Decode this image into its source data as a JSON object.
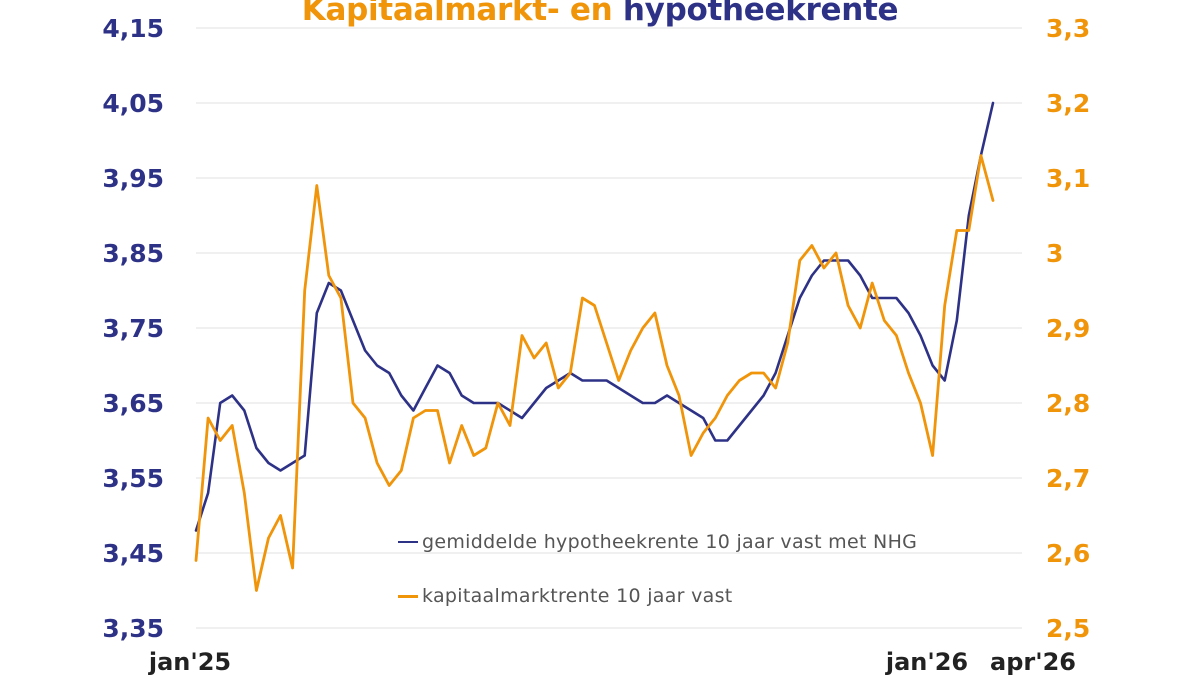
{
  "chart_data": {
    "type": "line",
    "title": {
      "part1": "Kapitaalmarkt- en",
      "part2": "hypotheekrente",
      "part1_color": "#F0940A",
      "part2_color": "#2E3287"
    },
    "x_tick_labels": [
      "jan'25",
      "jan'26",
      "apr'26"
    ],
    "y_left": {
      "lim": [
        3.35,
        4.15
      ],
      "ticks": [
        "3,35",
        "3,45",
        "3,55",
        "3,65",
        "3,75",
        "3,85",
        "3,95",
        "4,05",
        "4,15"
      ],
      "color": "#2E3287"
    },
    "y_right": {
      "lim": [
        2.5,
        3.3
      ],
      "ticks": [
        "2,5",
        "2,6",
        "2,7",
        "2,8",
        "2,9",
        "3",
        "3,1",
        "3,2",
        "3,3"
      ],
      "color": "#F0940A"
    },
    "grid": true,
    "legend_placement": "bottom-center",
    "series": [
      {
        "name": "gemiddelde hypotheekrente 10 jaar vast met NHG",
        "axis": "left",
        "color": "#2E3287",
        "values": [
          3.48,
          3.53,
          3.65,
          3.66,
          3.64,
          3.59,
          3.57,
          3.56,
          3.57,
          3.58,
          3.77,
          3.81,
          3.8,
          3.76,
          3.72,
          3.7,
          3.69,
          3.66,
          3.64,
          3.67,
          3.7,
          3.69,
          3.66,
          3.65,
          3.65,
          3.65,
          3.64,
          3.63,
          3.65,
          3.67,
          3.68,
          3.69,
          3.68,
          3.68,
          3.68,
          3.67,
          3.66,
          3.65,
          3.65,
          3.66,
          3.65,
          3.64,
          3.63,
          3.6,
          3.6,
          3.62,
          3.64,
          3.66,
          3.69,
          3.74,
          3.79,
          3.82,
          3.84,
          3.84,
          3.84,
          3.82,
          3.79,
          3.79,
          3.79,
          3.77,
          3.74,
          3.7,
          3.68,
          3.76,
          3.9,
          3.98,
          4.05
        ]
      },
      {
        "name": "kapitaalmarktrente 10 jaar vast",
        "axis": "right",
        "color": "#F0940A",
        "values": [
          2.59,
          2.78,
          2.75,
          2.77,
          2.68,
          2.55,
          2.62,
          2.65,
          2.58,
          2.95,
          3.09,
          2.97,
          2.94,
          2.8,
          2.78,
          2.72,
          2.69,
          2.71,
          2.78,
          2.79,
          2.79,
          2.72,
          2.77,
          2.73,
          2.74,
          2.8,
          2.77,
          2.89,
          2.86,
          2.88,
          2.82,
          2.84,
          2.94,
          2.93,
          2.88,
          2.83,
          2.87,
          2.9,
          2.92,
          2.85,
          2.81,
          2.73,
          2.76,
          2.78,
          2.81,
          2.83,
          2.84,
          2.84,
          2.82,
          2.88,
          2.99,
          3.01,
          2.98,
          3.0,
          2.93,
          2.9,
          2.96,
          2.91,
          2.89,
          2.84,
          2.8,
          2.73,
          2.93,
          3.03,
          3.03,
          3.13,
          3.07
        ]
      }
    ]
  }
}
